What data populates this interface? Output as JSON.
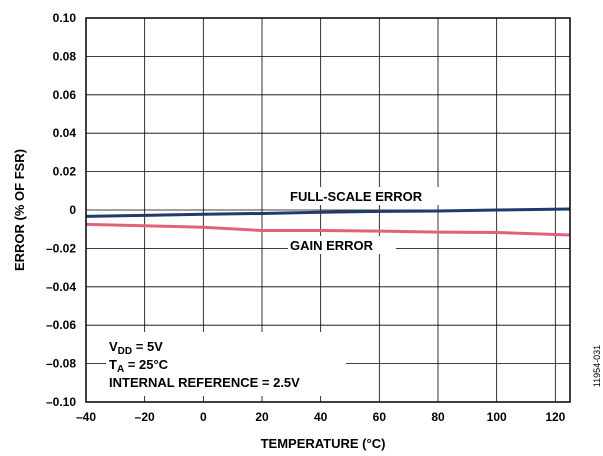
{
  "chart_data": {
    "type": "line",
    "xlabel": "TEMPERATURE (°C)",
    "ylabel": "ERROR (% OF FSR)",
    "xlim": [
      -40,
      125
    ],
    "ylim": [
      -0.1,
      0.1
    ],
    "x_ticks": [
      -40,
      -20,
      0,
      20,
      40,
      60,
      80,
      100,
      120
    ],
    "x_tick_labels": [
      "–40",
      "–20",
      "0",
      "20",
      "40",
      "60",
      "80",
      "100",
      "120"
    ],
    "y_ticks": [
      0.1,
      0.08,
      0.06,
      0.04,
      0.02,
      0,
      -0.02,
      -0.04,
      -0.06,
      -0.08,
      -0.1
    ],
    "y_tick_labels": [
      "0.10",
      "0.08",
      "0.06",
      "0.04",
      "0.02",
      "0",
      "–0.02",
      "–0.04",
      "–0.06",
      "–0.08",
      "–0.10"
    ],
    "grid": true,
    "series": [
      {
        "name": "FULL-SCALE ERROR",
        "color": "#1f3a6e",
        "x": [
          -40,
          -20,
          0,
          20,
          40,
          60,
          80,
          100,
          125
        ],
        "y": [
          -0.0033,
          -0.0028,
          -0.0022,
          -0.0018,
          -0.0012,
          -0.0007,
          -0.0005,
          0.0,
          0.0005
        ]
      },
      {
        "name": "GAIN ERROR",
        "color": "#e0627a",
        "x": [
          -40,
          -20,
          0,
          20,
          40,
          60,
          80,
          100,
          125
        ],
        "y": [
          -0.0075,
          -0.0082,
          -0.009,
          -0.0107,
          -0.0107,
          -0.011,
          -0.0115,
          -0.0117,
          -0.013
        ]
      }
    ],
    "conditions": {
      "vdd": {
        "prefix": "V",
        "sub": "DD",
        "suffix": " = 5V"
      },
      "ta": {
        "prefix": "T",
        "sub": "A",
        "suffix": " = 25°C"
      },
      "ref": "INTERNAL REFERENCE = 2.5V"
    },
    "figure_id": "11954-031"
  }
}
